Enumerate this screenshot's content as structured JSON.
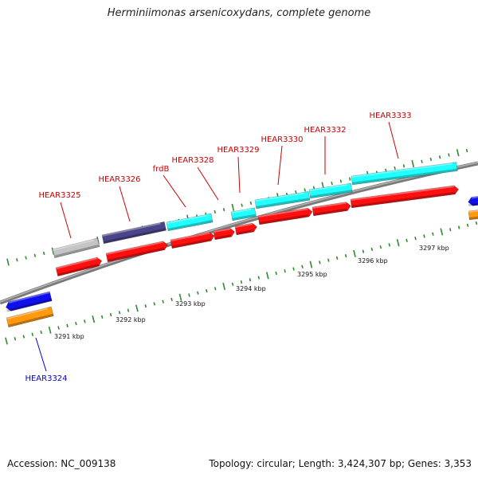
{
  "title": "Herminiimonas arsenicoxydans, complete genome",
  "footer": {
    "accession": "Accession: NC_009138",
    "summary": "Topology: circular; Length: 3,424,307 bp; Genes: 3,353"
  },
  "colors": {
    "backbone": "#8a8a8a",
    "tick": "#2e8b2e",
    "label_red": "#cc0000",
    "label_blue": "#0000cc",
    "red": "#ff1010",
    "cyan": "#22ffff",
    "navy": "#4a4488",
    "gray": "#c4c4c4",
    "blue": "#1010ee",
    "orange": "#ff9910"
  },
  "axis": {
    "kbp_labels": [
      "3291 kbp",
      "3292 kbp",
      "3293 kbp",
      "3294 kbp",
      "3295 kbp",
      "3296 kbp",
      "3297 kbp"
    ]
  },
  "genes": [
    {
      "id": "HEAR3324",
      "label": "HEAR3324",
      "label_color": "blue"
    },
    {
      "id": "HEAR3325",
      "label": "HEAR3325",
      "label_color": "red"
    },
    {
      "id": "HEAR3326",
      "label": "HEAR3326",
      "label_color": "red"
    },
    {
      "id": "frdB",
      "label": "frdB",
      "label_color": "red"
    },
    {
      "id": "HEAR3328",
      "label": "HEAR3328",
      "label_color": "red"
    },
    {
      "id": "HEAR3329",
      "label": "HEAR3329",
      "label_color": "red"
    },
    {
      "id": "HEAR3330",
      "label": "HEAR3330",
      "label_color": "red"
    },
    {
      "id": "HEAR3332",
      "label": "HEAR3332",
      "label_color": "red"
    },
    {
      "id": "HEAR3333",
      "label": "HEAR3333",
      "label_color": "red"
    }
  ]
}
